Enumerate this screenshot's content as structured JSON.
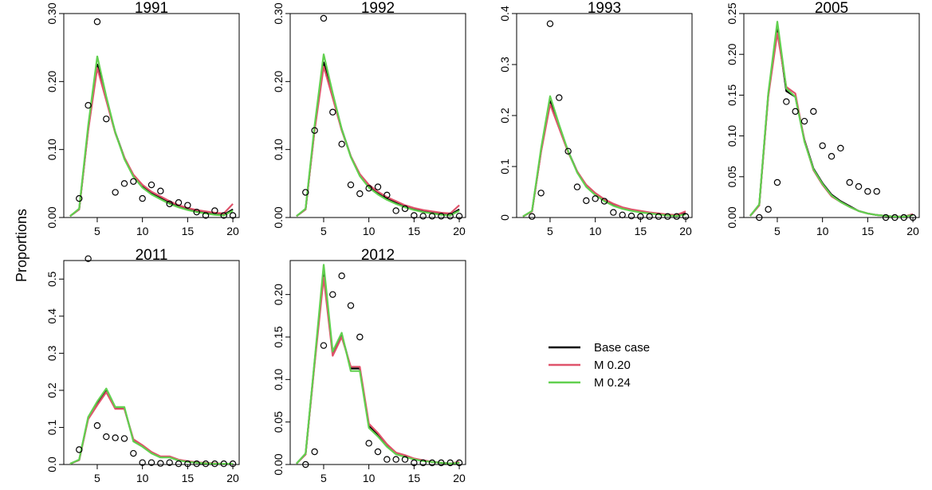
{
  "ylabel": "Proportions",
  "legend": {
    "items": [
      {
        "label": "Base case",
        "color": "#000000"
      },
      {
        "label": "M 0.20",
        "color": "#DF536B"
      },
      {
        "label": "M 0.24",
        "color": "#61D04F"
      }
    ]
  },
  "chart_data": [
    {
      "type": "line",
      "title": "1991",
      "xlabel": "",
      "ylabel": "Proportions",
      "xlim": [
        1.3,
        20.7
      ],
      "ylim": [
        0,
        0.3
      ],
      "xticks": [
        5,
        10,
        15,
        20
      ],
      "xtick_labels": [
        "5",
        "10",
        "15",
        "20"
      ],
      "yticks": [
        0,
        0.1,
        0.2,
        0.3
      ],
      "ytick_labels": [
        "0.00",
        "0.10",
        "0.20",
        "0.30"
      ],
      "x": [
        2,
        3,
        4,
        5,
        6,
        7,
        8,
        9,
        10,
        11,
        12,
        13,
        14,
        15,
        16,
        17,
        18,
        19,
        20
      ],
      "series": [
        {
          "name": "Base case",
          "color": "#000000",
          "values": [
            0.002,
            0.012,
            0.13,
            0.225,
            0.175,
            0.125,
            0.088,
            0.062,
            0.046,
            0.036,
            0.029,
            0.022,
            0.016,
            0.012,
            0.009,
            0.007,
            0.005,
            0.004,
            0.012
          ]
        },
        {
          "name": "M 0.20",
          "color": "#DF536B",
          "values": [
            0.002,
            0.012,
            0.128,
            0.22,
            0.172,
            0.124,
            0.088,
            0.063,
            0.048,
            0.038,
            0.031,
            0.024,
            0.018,
            0.014,
            0.011,
            0.009,
            0.007,
            0.006,
            0.02
          ]
        },
        {
          "name": "M 0.24",
          "color": "#61D04F",
          "values": [
            0.002,
            0.013,
            0.135,
            0.237,
            0.178,
            0.125,
            0.086,
            0.06,
            0.044,
            0.034,
            0.027,
            0.02,
            0.015,
            0.011,
            0.008,
            0.006,
            0.004,
            0.003,
            0.01
          ]
        }
      ],
      "observed": {
        "x": [
          3,
          4,
          5,
          6,
          7,
          8,
          9,
          10,
          11,
          12,
          13,
          14,
          15,
          16,
          17,
          18,
          19,
          20
        ],
        "y": [
          0.028,
          0.165,
          0.288,
          0.145,
          0.037,
          0.05,
          0.053,
          0.028,
          0.048,
          0.039,
          0.02,
          0.022,
          0.018,
          0.008,
          0.003,
          0.01,
          0.003,
          0.003
        ]
      }
    },
    {
      "type": "line",
      "title": "1992",
      "xlabel": "",
      "ylabel": "Proportions",
      "xlim": [
        1.3,
        20.7
      ],
      "ylim": [
        0,
        0.3
      ],
      "xticks": [
        5,
        10,
        15,
        20
      ],
      "xtick_labels": [
        "5",
        "10",
        "15",
        "20"
      ],
      "yticks": [
        0,
        0.1,
        0.2,
        0.3
      ],
      "ytick_labels": [
        "0.00",
        "0.10",
        "0.20",
        "0.30"
      ],
      "x": [
        2,
        3,
        4,
        5,
        6,
        7,
        8,
        9,
        10,
        11,
        12,
        13,
        14,
        15,
        16,
        17,
        18,
        19,
        20
      ],
      "series": [
        {
          "name": "Base case",
          "color": "#000000",
          "values": [
            0.002,
            0.012,
            0.13,
            0.228,
            0.18,
            0.13,
            0.09,
            0.063,
            0.046,
            0.036,
            0.028,
            0.022,
            0.016,
            0.012,
            0.009,
            0.007,
            0.005,
            0.004,
            0.012
          ]
        },
        {
          "name": "M 0.20",
          "color": "#DF536B",
          "values": [
            0.002,
            0.012,
            0.128,
            0.222,
            0.176,
            0.128,
            0.09,
            0.064,
            0.048,
            0.038,
            0.03,
            0.024,
            0.018,
            0.014,
            0.011,
            0.009,
            0.007,
            0.006,
            0.018
          ]
        },
        {
          "name": "M 0.24",
          "color": "#61D04F",
          "values": [
            0.002,
            0.013,
            0.135,
            0.24,
            0.183,
            0.13,
            0.089,
            0.061,
            0.044,
            0.034,
            0.026,
            0.02,
            0.015,
            0.011,
            0.008,
            0.006,
            0.004,
            0.003,
            0.01
          ]
        }
      ],
      "observed": {
        "x": [
          3,
          4,
          5,
          6,
          7,
          8,
          9,
          10,
          11,
          12,
          13,
          14,
          15,
          16,
          17,
          18,
          19,
          20
        ],
        "y": [
          0.037,
          0.128,
          0.293,
          0.155,
          0.108,
          0.048,
          0.035,
          0.043,
          0.045,
          0.033,
          0.01,
          0.013,
          0.003,
          0.002,
          0.002,
          0.002,
          0.002,
          0.002
        ]
      }
    },
    {
      "type": "line",
      "title": "1993",
      "xlabel": "",
      "ylabel": "Proportions",
      "xlim": [
        1.3,
        20.7
      ],
      "ylim": [
        0,
        0.4
      ],
      "xticks": [
        5,
        10,
        15,
        20
      ],
      "xtick_labels": [
        "5",
        "10",
        "15",
        "20"
      ],
      "yticks": [
        0,
        0.1,
        0.2,
        0.3,
        0.4
      ],
      "ytick_labels": [
        "0",
        "0.1",
        "0.2",
        "0.3",
        "0.4"
      ],
      "x": [
        2,
        3,
        4,
        5,
        6,
        7,
        8,
        9,
        10,
        11,
        12,
        13,
        14,
        15,
        16,
        17,
        18,
        19,
        20
      ],
      "series": [
        {
          "name": "Base case",
          "color": "#000000",
          "values": [
            0.002,
            0.012,
            0.13,
            0.228,
            0.178,
            0.13,
            0.09,
            0.063,
            0.046,
            0.034,
            0.025,
            0.018,
            0.014,
            0.011,
            0.009,
            0.007,
            0.005,
            0.004,
            0.008
          ]
        },
        {
          "name": "M 0.20",
          "color": "#DF536B",
          "values": [
            0.002,
            0.012,
            0.128,
            0.222,
            0.175,
            0.128,
            0.09,
            0.064,
            0.048,
            0.036,
            0.027,
            0.02,
            0.016,
            0.013,
            0.01,
            0.008,
            0.006,
            0.005,
            0.012
          ]
        },
        {
          "name": "M 0.24",
          "color": "#61D04F",
          "values": [
            0.002,
            0.013,
            0.135,
            0.238,
            0.182,
            0.13,
            0.088,
            0.06,
            0.044,
            0.032,
            0.023,
            0.017,
            0.013,
            0.01,
            0.008,
            0.006,
            0.004,
            0.003,
            0.006
          ]
        }
      ],
      "observed": {
        "x": [
          3,
          4,
          5,
          6,
          7,
          8,
          9,
          10,
          11,
          12,
          13,
          14,
          15,
          16,
          17,
          18,
          19,
          20
        ],
        "y": [
          0.002,
          0.048,
          0.38,
          0.235,
          0.13,
          0.06,
          0.033,
          0.037,
          0.032,
          0.01,
          0.005,
          0.003,
          0.002,
          0.002,
          0.002,
          0.002,
          0.002,
          0.002
        ]
      }
    },
    {
      "type": "line",
      "title": "2005",
      "xlabel": "",
      "ylabel": "Proportions",
      "xlim": [
        1.3,
        20.7
      ],
      "ylim": [
        0,
        0.25
      ],
      "xticks": [
        5,
        10,
        15,
        20
      ],
      "xtick_labels": [
        "5",
        "10",
        "15",
        "20"
      ],
      "yticks": [
        0,
        0.05,
        0.1,
        0.15,
        0.2,
        0.25
      ],
      "ytick_labels": [
        "0.00",
        "0.05",
        "0.10",
        "0.15",
        "0.20",
        "0.25"
      ],
      "x": [
        2,
        3,
        4,
        5,
        6,
        7,
        8,
        9,
        10,
        11,
        12,
        13,
        14,
        15,
        16,
        17,
        18,
        19,
        20
      ],
      "series": [
        {
          "name": "Base case",
          "color": "#000000",
          "values": [
            0.002,
            0.015,
            0.15,
            0.232,
            0.155,
            0.148,
            0.095,
            0.06,
            0.042,
            0.028,
            0.02,
            0.014,
            0.008,
            0.005,
            0.003,
            0.002,
            0.001,
            0.001,
            0.004
          ]
        },
        {
          "name": "M 0.20",
          "color": "#DF536B",
          "values": [
            0.002,
            0.015,
            0.148,
            0.226,
            0.16,
            0.152,
            0.094,
            0.058,
            0.04,
            0.026,
            0.019,
            0.013,
            0.008,
            0.005,
            0.003,
            0.002,
            0.001,
            0.001,
            0.004
          ]
        },
        {
          "name": "M 0.24",
          "color": "#61D04F",
          "values": [
            0.002,
            0.016,
            0.152,
            0.24,
            0.158,
            0.148,
            0.093,
            0.059,
            0.041,
            0.027,
            0.019,
            0.013,
            0.008,
            0.005,
            0.003,
            0.002,
            0.001,
            0.001,
            0.003
          ]
        }
      ],
      "observed": {
        "x": [
          3,
          4,
          5,
          6,
          7,
          8,
          9,
          10,
          11,
          12,
          13,
          14,
          15,
          16,
          17,
          18,
          19,
          20
        ],
        "y": [
          0.0,
          0.01,
          0.043,
          0.142,
          0.13,
          0.118,
          0.13,
          0.088,
          0.075,
          0.085,
          0.043,
          0.038,
          0.032,
          0.032,
          0.0,
          0.0,
          0.0,
          0.0
        ]
      }
    },
    {
      "type": "line",
      "title": "2011",
      "xlabel": "",
      "ylabel": "Proportions",
      "xlim": [
        1.3,
        20.7
      ],
      "ylim": [
        0,
        0.55
      ],
      "xticks": [
        5,
        10,
        15,
        20
      ],
      "xtick_labels": [
        "5",
        "10",
        "15",
        "20"
      ],
      "yticks": [
        0,
        0.1,
        0.2,
        0.3,
        0.4,
        0.5
      ],
      "ytick_labels": [
        "0.0",
        "0.1",
        "0.2",
        "0.3",
        "0.4",
        "0.5"
      ],
      "x": [
        2,
        3,
        4,
        5,
        6,
        7,
        8,
        9,
        10,
        11,
        12,
        13,
        14,
        15,
        16,
        17,
        18,
        19,
        20
      ],
      "series": [
        {
          "name": "Base case",
          "color": "#000000",
          "values": [
            0.002,
            0.012,
            0.125,
            0.165,
            0.2,
            0.152,
            0.152,
            0.065,
            0.05,
            0.032,
            0.02,
            0.02,
            0.012,
            0.008,
            0.005,
            0.003,
            0.002,
            0.002,
            0.002
          ]
        },
        {
          "name": "M 0.20",
          "color": "#DF536B",
          "values": [
            0.002,
            0.012,
            0.122,
            0.16,
            0.195,
            0.15,
            0.15,
            0.068,
            0.052,
            0.034,
            0.022,
            0.022,
            0.013,
            0.009,
            0.006,
            0.004,
            0.003,
            0.002,
            0.002
          ]
        },
        {
          "name": "M 0.24",
          "color": "#61D04F",
          "values": [
            0.002,
            0.013,
            0.128,
            0.17,
            0.205,
            0.155,
            0.155,
            0.062,
            0.048,
            0.03,
            0.019,
            0.019,
            0.011,
            0.007,
            0.005,
            0.003,
            0.002,
            0.002,
            0.002
          ]
        }
      ],
      "observed": {
        "x": [
          3,
          4,
          5,
          6,
          7,
          8,
          9,
          10,
          11,
          12,
          13,
          14,
          15,
          16,
          17,
          18,
          19,
          20
        ],
        "y": [
          0.04,
          0.555,
          0.105,
          0.075,
          0.072,
          0.07,
          0.03,
          0.005,
          0.005,
          0.003,
          0.005,
          0.002,
          0.002,
          0.002,
          0.002,
          0.002,
          0.002,
          0.002
        ]
      }
    },
    {
      "type": "line",
      "title": "2012",
      "xlabel": "",
      "ylabel": "Proportions",
      "xlim": [
        1.3,
        20.7
      ],
      "ylim": [
        0,
        0.24
      ],
      "xticks": [
        5,
        10,
        15,
        20
      ],
      "xtick_labels": [
        "5",
        "10",
        "15",
        "20"
      ],
      "yticks": [
        0,
        0.05,
        0.1,
        0.15,
        0.2
      ],
      "ytick_labels": [
        "0.00",
        "0.05",
        "0.10",
        "0.15",
        "0.20"
      ],
      "x": [
        2,
        3,
        4,
        5,
        6,
        7,
        8,
        9,
        10,
        11,
        12,
        13,
        14,
        15,
        16,
        17,
        18,
        19,
        20
      ],
      "series": [
        {
          "name": "Base case",
          "color": "#000000",
          "values": [
            0.001,
            0.012,
            0.12,
            0.228,
            0.13,
            0.153,
            0.113,
            0.113,
            0.045,
            0.035,
            0.022,
            0.013,
            0.01,
            0.006,
            0.005,
            0.003,
            0.002,
            0.001,
            0.003
          ]
        },
        {
          "name": "M 0.20",
          "color": "#DF536B",
          "values": [
            0.001,
            0.012,
            0.118,
            0.22,
            0.128,
            0.15,
            0.115,
            0.115,
            0.048,
            0.037,
            0.024,
            0.014,
            0.011,
            0.007,
            0.005,
            0.003,
            0.002,
            0.001,
            0.003
          ]
        },
        {
          "name": "M 0.24",
          "color": "#61D04F",
          "values": [
            0.001,
            0.013,
            0.122,
            0.235,
            0.133,
            0.155,
            0.11,
            0.11,
            0.043,
            0.033,
            0.021,
            0.012,
            0.009,
            0.006,
            0.004,
            0.003,
            0.002,
            0.001,
            0.002
          ]
        }
      ],
      "observed": {
        "x": [
          3,
          4,
          5,
          6,
          7,
          8,
          9,
          10,
          11,
          12,
          13,
          14,
          15,
          16,
          17,
          18,
          19,
          20
        ],
        "y": [
          0.0,
          0.015,
          0.14,
          0.2,
          0.222,
          0.187,
          0.15,
          0.025,
          0.015,
          0.006,
          0.006,
          0.006,
          0.002,
          0.002,
          0.002,
          0.002,
          0.002,
          0.002
        ]
      }
    }
  ]
}
